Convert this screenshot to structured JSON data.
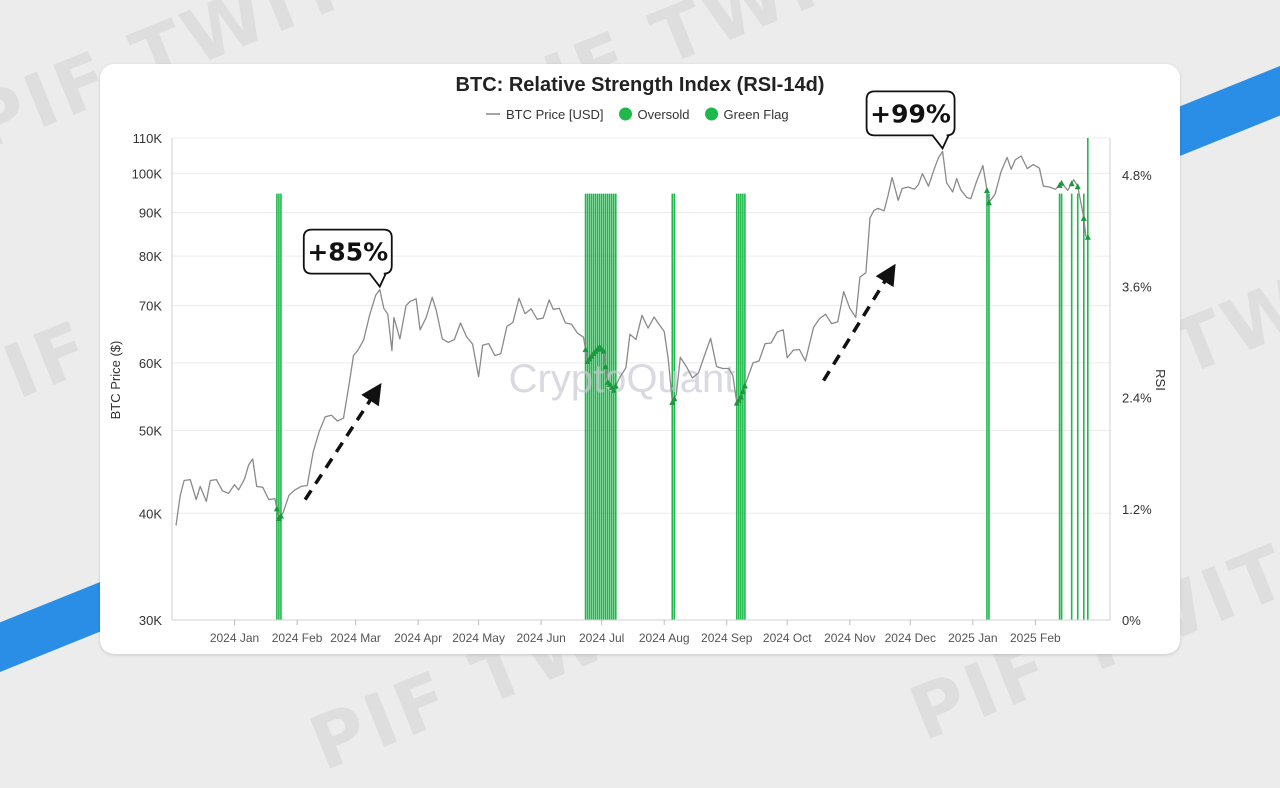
{
  "background": {
    "watermark_text": "PIF TWIT",
    "stripe_color": "#2b8ee6"
  },
  "chart_data": {
    "type": "line",
    "title": "BTC: Relative Strength Index (RSI-14d)",
    "watermark": "CryptoQuant",
    "legend": [
      {
        "name": "BTC Price [USD]",
        "marker": "line",
        "color": "#888888"
      },
      {
        "name": "Oversold",
        "marker": "dot",
        "color": "#1fb84b"
      },
      {
        "name": "Green Flag",
        "marker": "dot",
        "color": "#1fb84b"
      }
    ],
    "legend_position": "top-center",
    "ylabel_left": "BTC Price ($)",
    "ylabel_right": "RSI",
    "y_left_scale": "log",
    "y_left_range": [
      30000,
      110000
    ],
    "y_left_ticks": [
      {
        "v": 30000,
        "label": "30K"
      },
      {
        "v": 40000,
        "label": "40K"
      },
      {
        "v": 50000,
        "label": "50K"
      },
      {
        "v": 60000,
        "label": "60K"
      },
      {
        "v": 70000,
        "label": "70K"
      },
      {
        "v": 80000,
        "label": "80K"
      },
      {
        "v": 90000,
        "label": "90K"
      },
      {
        "v": 100000,
        "label": "100K"
      },
      {
        "v": 110000,
        "label": "110K"
      }
    ],
    "y_right_range": [
      0,
      5.2
    ],
    "y_right_ticks": [
      {
        "v": 0,
        "label": "0%"
      },
      {
        "v": 1.2,
        "label": "1.2%"
      },
      {
        "v": 2.4,
        "label": "2.4%"
      },
      {
        "v": 3.6,
        "label": "3.6%"
      },
      {
        "v": 4.8,
        "label": "4.8%"
      }
    ],
    "x_range": [
      "2023-12-01",
      "2025-03-10"
    ],
    "x_ticks": [
      {
        "date": "2024-01-01",
        "label": "2024 Jan"
      },
      {
        "date": "2024-02-01",
        "label": "2024 Feb"
      },
      {
        "date": "2024-03-01",
        "label": "2024 Mar"
      },
      {
        "date": "2024-04-01",
        "label": "2024 Apr"
      },
      {
        "date": "2024-05-01",
        "label": "2024 May"
      },
      {
        "date": "2024-06-01",
        "label": "2024 Jun"
      },
      {
        "date": "2024-07-01",
        "label": "2024 Jul"
      },
      {
        "date": "2024-08-01",
        "label": "2024 Aug"
      },
      {
        "date": "2024-09-01",
        "label": "2024 Sep"
      },
      {
        "date": "2024-10-01",
        "label": "2024 Oct"
      },
      {
        "date": "2024-11-01",
        "label": "2024 Nov"
      },
      {
        "date": "2024-12-01",
        "label": "2024 Dec"
      },
      {
        "date": "2025-01-01",
        "label": "2025 Jan"
      },
      {
        "date": "2025-02-01",
        "label": "2025 Feb"
      }
    ],
    "grid": "horizontal",
    "price_series": [
      [
        "2023-12-03",
        38700
      ],
      [
        "2023-12-05",
        41900
      ],
      [
        "2023-12-07",
        43700
      ],
      [
        "2023-12-10",
        43800
      ],
      [
        "2023-12-13",
        41500
      ],
      [
        "2023-12-15",
        43000
      ],
      [
        "2023-12-18",
        41300
      ],
      [
        "2023-12-20",
        43700
      ],
      [
        "2023-12-23",
        43800
      ],
      [
        "2023-12-26",
        42500
      ],
      [
        "2023-12-29",
        42200
      ],
      [
        "2024-01-01",
        43200
      ],
      [
        "2024-01-03",
        42600
      ],
      [
        "2024-01-06",
        43900
      ],
      [
        "2024-01-08",
        45600
      ],
      [
        "2024-01-10",
        46300
      ],
      [
        "2024-01-12",
        43000
      ],
      [
        "2024-01-15",
        42900
      ],
      [
        "2024-01-18",
        41500
      ],
      [
        "2024-01-21",
        41600
      ],
      [
        "2024-01-23",
        39500
      ],
      [
        "2024-01-25",
        40000
      ],
      [
        "2024-01-28",
        42000
      ],
      [
        "2024-01-31",
        42600
      ],
      [
        "2024-02-03",
        43000
      ],
      [
        "2024-02-06",
        43100
      ],
      [
        "2024-02-09",
        47200
      ],
      [
        "2024-02-12",
        49900
      ],
      [
        "2024-02-15",
        51900
      ],
      [
        "2024-02-18",
        52100
      ],
      [
        "2024-02-21",
        51300
      ],
      [
        "2024-02-24",
        51700
      ],
      [
        "2024-02-27",
        57000
      ],
      [
        "2024-02-29",
        61200
      ],
      [
        "2024-03-02",
        62000
      ],
      [
        "2024-03-05",
        63800
      ],
      [
        "2024-03-08",
        68300
      ],
      [
        "2024-03-11",
        72000
      ],
      [
        "2024-03-13",
        73100
      ],
      [
        "2024-03-15",
        69500
      ],
      [
        "2024-03-17",
        68400
      ],
      [
        "2024-03-19",
        62000
      ],
      [
        "2024-03-20",
        67800
      ],
      [
        "2024-03-23",
        64000
      ],
      [
        "2024-03-26",
        70000
      ],
      [
        "2024-03-28",
        70800
      ],
      [
        "2024-03-31",
        71300
      ],
      [
        "2024-04-02",
        65600
      ],
      [
        "2024-04-05",
        67800
      ],
      [
        "2024-04-08",
        71600
      ],
      [
        "2024-04-10",
        69100
      ],
      [
        "2024-04-13",
        64000
      ],
      [
        "2024-04-16",
        63400
      ],
      [
        "2024-04-19",
        63900
      ],
      [
        "2024-04-22",
        66800
      ],
      [
        "2024-04-25",
        64400
      ],
      [
        "2024-04-28",
        63100
      ],
      [
        "2024-05-01",
        57800
      ],
      [
        "2024-05-03",
        62900
      ],
      [
        "2024-05-06",
        63200
      ],
      [
        "2024-05-09",
        61200
      ],
      [
        "2024-05-12",
        61500
      ],
      [
        "2024-05-15",
        66200
      ],
      [
        "2024-05-18",
        66900
      ],
      [
        "2024-05-21",
        71400
      ],
      [
        "2024-05-24",
        68500
      ],
      [
        "2024-05-27",
        69400
      ],
      [
        "2024-05-30",
        67500
      ],
      [
        "2024-06-02",
        67700
      ],
      [
        "2024-06-05",
        71100
      ],
      [
        "2024-06-07",
        69300
      ],
      [
        "2024-06-10",
        69500
      ],
      [
        "2024-06-13",
        66800
      ],
      [
        "2024-06-16",
        66600
      ],
      [
        "2024-06-19",
        65000
      ],
      [
        "2024-06-22",
        64300
      ],
      [
        "2024-06-24",
        60300
      ],
      [
        "2024-06-27",
        61600
      ],
      [
        "2024-06-30",
        62700
      ],
      [
        "2024-07-02",
        62000
      ],
      [
        "2024-07-04",
        57000
      ],
      [
        "2024-07-05",
        56700
      ],
      [
        "2024-07-07",
        55800
      ],
      [
        "2024-07-10",
        57700
      ],
      [
        "2024-07-13",
        59200
      ],
      [
        "2024-07-15",
        64800
      ],
      [
        "2024-07-18",
        63900
      ],
      [
        "2024-07-21",
        68200
      ],
      [
        "2024-07-24",
        65900
      ],
      [
        "2024-07-27",
        67900
      ],
      [
        "2024-07-29",
        66800
      ],
      [
        "2024-08-01",
        65300
      ],
      [
        "2024-08-03",
        60700
      ],
      [
        "2024-08-05",
        54000
      ],
      [
        "2024-08-07",
        55100
      ],
      [
        "2024-08-09",
        60900
      ],
      [
        "2024-08-12",
        59400
      ],
      [
        "2024-08-15",
        57600
      ],
      [
        "2024-08-18",
        58400
      ],
      [
        "2024-08-21",
        61200
      ],
      [
        "2024-08-24",
        64100
      ],
      [
        "2024-08-27",
        59400
      ],
      [
        "2024-08-30",
        59100
      ],
      [
        "2024-09-02",
        59100
      ],
      [
        "2024-09-04",
        58000
      ],
      [
        "2024-09-06",
        53900
      ],
      [
        "2024-09-08",
        54800
      ],
      [
        "2024-09-11",
        57300
      ],
      [
        "2024-09-14",
        60000
      ],
      [
        "2024-09-17",
        60300
      ],
      [
        "2024-09-20",
        63200
      ],
      [
        "2024-09-23",
        63300
      ],
      [
        "2024-09-26",
        65200
      ],
      [
        "2024-09-29",
        65600
      ],
      [
        "2024-10-01",
        60800
      ],
      [
        "2024-10-04",
        62100
      ],
      [
        "2024-10-07",
        62200
      ],
      [
        "2024-10-10",
        60300
      ],
      [
        "2024-10-14",
        66000
      ],
      [
        "2024-10-17",
        67600
      ],
      [
        "2024-10-20",
        68400
      ],
      [
        "2024-10-23",
        66700
      ],
      [
        "2024-10-26",
        67000
      ],
      [
        "2024-10-29",
        72700
      ],
      [
        "2024-11-01",
        69500
      ],
      [
        "2024-11-04",
        67800
      ],
      [
        "2024-11-06",
        75600
      ],
      [
        "2024-11-09",
        76500
      ],
      [
        "2024-11-11",
        88700
      ],
      [
        "2024-11-13",
        90500
      ],
      [
        "2024-11-15",
        91000
      ],
      [
        "2024-11-18",
        90400
      ],
      [
        "2024-11-20",
        94300
      ],
      [
        "2024-11-22",
        98900
      ],
      [
        "2024-11-25",
        93000
      ],
      [
        "2024-11-27",
        96000
      ],
      [
        "2024-11-30",
        96400
      ],
      [
        "2024-12-03",
        95800
      ],
      [
        "2024-12-05",
        97000
      ],
      [
        "2024-12-07",
        99900
      ],
      [
        "2024-12-10",
        96600
      ],
      [
        "2024-12-13",
        101400
      ],
      [
        "2024-12-15",
        104300
      ],
      [
        "2024-12-17",
        106100
      ],
      [
        "2024-12-19",
        97500
      ],
      [
        "2024-12-22",
        95100
      ],
      [
        "2024-12-24",
        98600
      ],
      [
        "2024-12-26",
        95700
      ],
      [
        "2024-12-29",
        93700
      ],
      [
        "2024-12-31",
        93400
      ],
      [
        "2025-01-03",
        98100
      ],
      [
        "2025-01-06",
        102100
      ],
      [
        "2025-01-09",
        92500
      ],
      [
        "2025-01-12",
        94500
      ],
      [
        "2025-01-15",
        100500
      ],
      [
        "2025-01-18",
        104400
      ],
      [
        "2025-01-20",
        101100
      ],
      [
        "2025-01-22",
        103700
      ],
      [
        "2025-01-25",
        104800
      ],
      [
        "2025-01-28",
        101300
      ],
      [
        "2025-01-31",
        102400
      ],
      [
        "2025-02-03",
        101400
      ],
      [
        "2025-02-05",
        96600
      ],
      [
        "2025-02-08",
        96400
      ],
      [
        "2025-02-11",
        95800
      ],
      [
        "2025-02-14",
        97500
      ],
      [
        "2025-02-17",
        95500
      ],
      [
        "2025-02-20",
        98300
      ],
      [
        "2025-02-22",
        96600
      ],
      [
        "2025-02-25",
        88700
      ],
      [
        "2025-02-26",
        84300
      ]
    ],
    "rsi_oversold_bars": [
      "2024-01-22",
      "2024-01-23",
      "2024-01-24",
      "2024-06-23",
      "2024-06-24",
      "2024-06-25",
      "2024-06-26",
      "2024-06-27",
      "2024-06-28",
      "2024-06-29",
      "2024-06-30",
      "2024-07-01",
      "2024-07-02",
      "2024-07-03",
      "2024-07-04",
      "2024-07-05",
      "2024-07-06",
      "2024-07-07",
      "2024-07-08",
      "2024-08-05",
      "2024-08-06",
      "2024-09-06",
      "2024-09-07",
      "2024-09-08",
      "2024-09-09",
      "2024-09-10",
      "2025-01-08",
      "2025-01-09",
      "2025-02-13",
      "2025-02-14",
      "2025-02-19",
      "2025-02-22",
      "2025-02-25",
      "2025-02-27"
    ],
    "rsi_bar_value": 4.6,
    "rsi_bar_value_last": 5.2,
    "annotations": [
      {
        "label": "+85%",
        "date": "2024-03-13",
        "price": 73100
      },
      {
        "label": "+99%",
        "date": "2024-12-17",
        "price": 106100
      }
    ],
    "trend_arrows": [
      {
        "from": [
          "2024-02-05",
          41500
        ],
        "to": [
          "2024-03-11",
          55500
        ]
      },
      {
        "from": [
          "2024-10-19",
          57200
        ],
        "to": [
          "2024-11-21",
          76500
        ]
      }
    ]
  }
}
